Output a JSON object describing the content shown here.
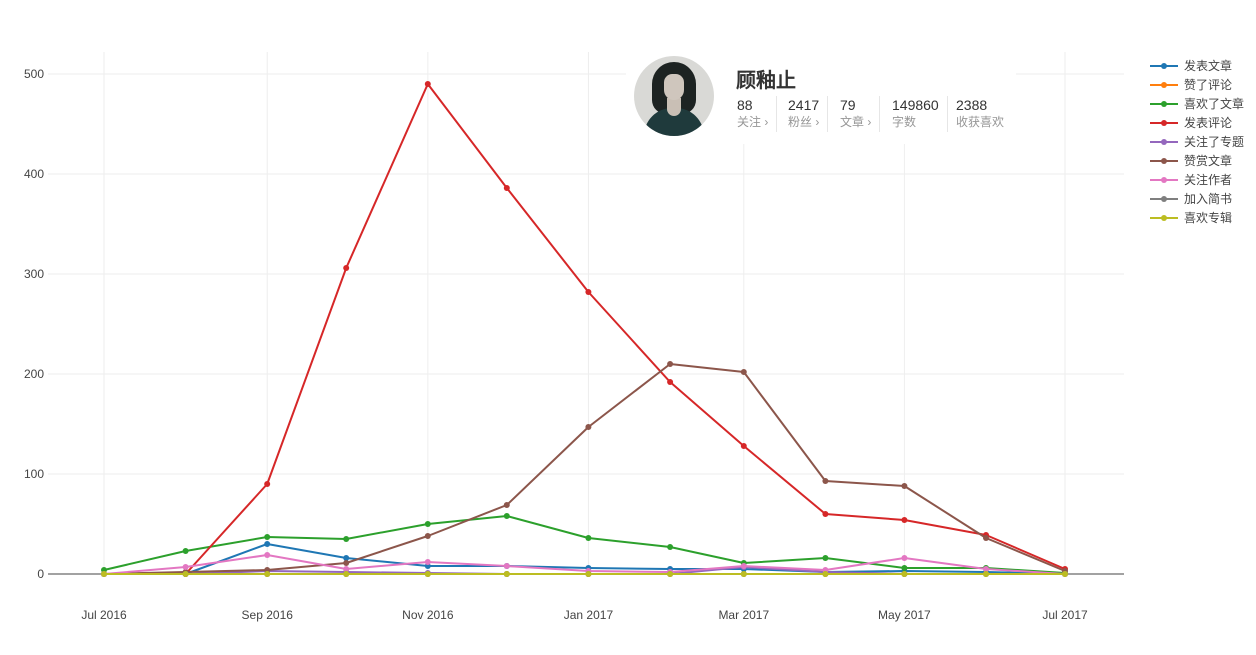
{
  "profile": {
    "name": "顾釉止",
    "stats": [
      {
        "value": "88",
        "label": "关注 ›"
      },
      {
        "value": "2417",
        "label": "粉丝 ›"
      },
      {
        "value": "79",
        "label": "文章 ›"
      },
      {
        "value": "149860",
        "label": "字数"
      },
      {
        "value": "2388",
        "label": "收获喜欢"
      }
    ]
  },
  "chart_data": {
    "type": "line",
    "title": "",
    "xlabel": "",
    "ylabel": "",
    "x": [
      "2016-07-01",
      "2016-08-01",
      "2016-09-01",
      "2016-10-01",
      "2016-11-01",
      "2016-12-01",
      "2017-01-01",
      "2017-02-01",
      "2017-03-01",
      "2017-04-01",
      "2017-05-01",
      "2017-06-01",
      "2017-07-01"
    ],
    "x_tick_labels": [
      {
        "date": "2016-07-01",
        "label": "Jul 2016"
      },
      {
        "date": "2016-09-01",
        "label": "Sep 2016"
      },
      {
        "date": "2016-11-01",
        "label": "Nov 2016"
      },
      {
        "date": "2017-01-01",
        "label": "Jan 2017"
      },
      {
        "date": "2017-03-01",
        "label": "Mar 2017"
      },
      {
        "date": "2017-05-01",
        "label": "May 2017"
      },
      {
        "date": "2017-07-01",
        "label": "Jul 2017"
      }
    ],
    "y_ticks": [
      0,
      100,
      200,
      300,
      400,
      500
    ],
    "ylim": [
      0,
      500
    ],
    "grid": true,
    "legend_position": "right",
    "series": [
      {
        "name": "发表文章",
        "color": "#1f77b4",
        "values": [
          0,
          0,
          30,
          16,
          8,
          8,
          6,
          5,
          5,
          2,
          3,
          2,
          0
        ]
      },
      {
        "name": "赞了评论",
        "color": "#ff7f0e",
        "values": [
          0,
          0,
          0,
          0,
          0,
          0,
          0,
          0,
          0,
          0,
          0,
          0,
          0
        ]
      },
      {
        "name": "喜欢了文章",
        "color": "#2ca02c",
        "values": [
          4,
          23,
          37,
          35,
          50,
          58,
          36,
          27,
          11,
          16,
          6,
          6,
          1
        ]
      },
      {
        "name": "发表评论",
        "color": "#d62728",
        "values": [
          0,
          0,
          90,
          306,
          490,
          386,
          282,
          192,
          128,
          60,
          54,
          39,
          5
        ]
      },
      {
        "name": "关注了专题",
        "color": "#9467bd",
        "values": [
          0,
          0,
          3,
          2,
          1,
          0,
          0,
          0,
          7,
          2,
          0,
          0,
          0
        ]
      },
      {
        "name": "赞赏文章",
        "color": "#8c564b",
        "values": [
          0,
          2,
          4,
          11,
          38,
          69,
          147,
          210,
          202,
          93,
          88,
          36,
          3
        ]
      },
      {
        "name": "关注作者",
        "color": "#e377c2",
        "values": [
          0,
          7,
          19,
          5,
          12,
          8,
          3,
          2,
          8,
          4,
          16,
          5,
          0
        ]
      },
      {
        "name": "加入简书",
        "color": "#7f7f7f",
        "values": [
          0,
          0,
          0,
          0,
          0,
          0,
          0,
          0,
          0,
          0,
          0,
          0,
          0
        ]
      },
      {
        "name": "喜欢专辑",
        "color": "#bcbd22",
        "values": [
          0,
          0,
          0,
          0,
          0,
          0,
          0,
          0,
          0,
          0,
          0,
          0,
          0
        ]
      }
    ]
  }
}
